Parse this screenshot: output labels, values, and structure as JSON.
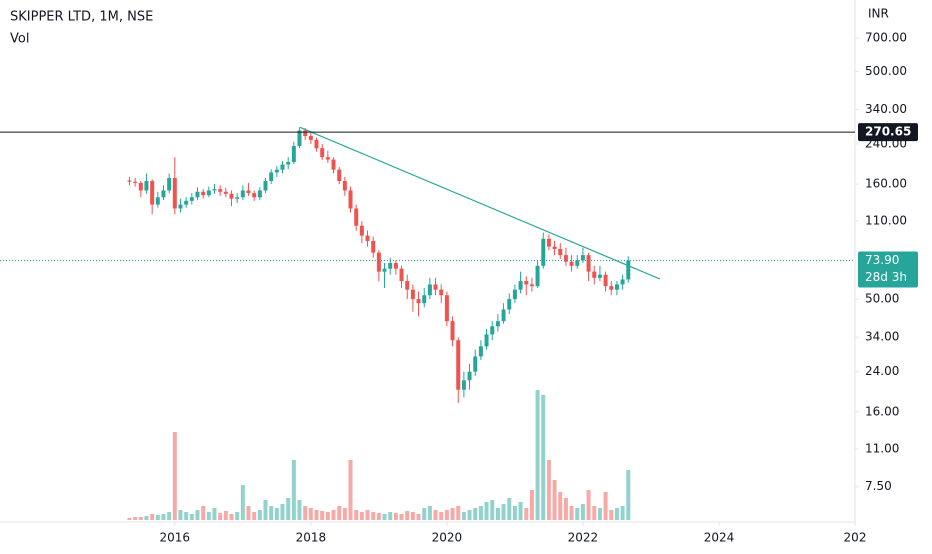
{
  "chart_data": {
    "type": "candlestick",
    "title": "SKIPPER LTD, 1M, NSE",
    "volume_label": "Vol",
    "currency": "INR",
    "log_scale": true,
    "up_color": "#26a69a",
    "down_color": "#ef5350",
    "xlim": [
      2013.43,
      2026.0
    ],
    "xticks": [
      2016,
      2018,
      2020,
      2022,
      2024,
      {
        "value": 2026,
        "label": "202"
      }
    ],
    "ylim": [
      5.25,
      1029
    ],
    "yticks": [
      {
        "value": 7.5,
        "label": "7.50"
      },
      {
        "value": 11,
        "label": "11.00"
      },
      {
        "value": 16,
        "label": "16.00"
      },
      {
        "value": 24,
        "label": "24.00"
      },
      {
        "value": 34,
        "label": "34.00"
      },
      {
        "value": 50,
        "label": "50.00"
      },
      {
        "value": 110,
        "label": "110.00"
      },
      {
        "value": 160,
        "label": "160.00"
      },
      {
        "value": 240,
        "label": "240.00"
      },
      {
        "value": 340,
        "label": "340.00"
      },
      {
        "value": 500,
        "label": "500.00"
      },
      {
        "value": 700,
        "label": "700.00"
      }
    ],
    "x": [
      2015.333,
      2015.417,
      2015.5,
      2015.583,
      2015.667,
      2015.75,
      2015.833,
      2015.917,
      2016,
      2016.083,
      2016.167,
      2016.25,
      2016.333,
      2016.417,
      2016.5,
      2016.583,
      2016.667,
      2016.75,
      2016.833,
      2016.917,
      2017,
      2017.083,
      2017.167,
      2017.25,
      2017.333,
      2017.417,
      2017.5,
      2017.583,
      2017.667,
      2017.75,
      2017.833,
      2017.917,
      2018,
      2018.083,
      2018.167,
      2018.25,
      2018.333,
      2018.417,
      2018.5,
      2018.583,
      2018.667,
      2018.75,
      2018.833,
      2018.917,
      2019,
      2019.083,
      2019.167,
      2019.25,
      2019.333,
      2019.417,
      2019.5,
      2019.583,
      2019.667,
      2019.75,
      2019.833,
      2019.917,
      2020,
      2020.083,
      2020.167,
      2020.25,
      2020.333,
      2020.417,
      2020.5,
      2020.583,
      2020.667,
      2020.75,
      2020.833,
      2020.917,
      2021,
      2021.083,
      2021.167,
      2021.25,
      2021.333,
      2021.417,
      2021.5,
      2021.583,
      2021.667,
      2021.75,
      2021.833,
      2021.917,
      2022,
      2022.083,
      2022.167,
      2022.25,
      2022.333,
      2022.417,
      2022.5,
      2022.583,
      2022.667
    ],
    "open": [
      166,
      164,
      162,
      150,
      165,
      130,
      140,
      150,
      170,
      125,
      130,
      135,
      140,
      148,
      143,
      150,
      152,
      148,
      145,
      138,
      140,
      150,
      146,
      140,
      150,
      165,
      180,
      185,
      195,
      200,
      235,
      275,
      260,
      250,
      230,
      210,
      205,
      185,
      165,
      150,
      125,
      105,
      95,
      90,
      80,
      66,
      68,
      72,
      68,
      60,
      55,
      50,
      48,
      52,
      58,
      55,
      52,
      40,
      33,
      20,
      22,
      24,
      28,
      31,
      35,
      38,
      40,
      45,
      50,
      55,
      60,
      58,
      57,
      70,
      92,
      85,
      83,
      78,
      73,
      70,
      74,
      78,
      66,
      62,
      64,
      57,
      55,
      58,
      61
    ],
    "high": [
      172,
      170,
      165,
      178,
      168,
      148,
      158,
      178,
      210,
      138,
      140,
      146,
      155,
      152,
      156,
      160,
      158,
      154,
      150,
      146,
      158,
      162,
      150,
      155,
      170,
      186,
      192,
      202,
      210,
      245,
      284,
      282,
      272,
      256,
      240,
      224,
      210,
      190,
      172,
      156,
      130,
      110,
      100,
      94,
      82,
      72,
      76,
      74,
      70,
      64,
      58,
      54,
      56,
      62,
      62,
      58,
      54,
      42,
      34,
      24,
      26,
      30,
      33,
      37,
      40,
      43,
      48,
      53,
      58,
      66,
      63,
      62,
      74,
      98,
      96,
      90,
      88,
      84,
      78,
      78,
      84,
      80,
      70,
      70,
      66,
      60,
      60,
      64,
      77
    ],
    "low": [
      158,
      156,
      140,
      145,
      118,
      126,
      136,
      146,
      118,
      120,
      126,
      130,
      136,
      138,
      140,
      145,
      142,
      140,
      128,
      132,
      136,
      142,
      135,
      136,
      146,
      160,
      172,
      178,
      186,
      196,
      230,
      250,
      240,
      222,
      204,
      198,
      178,
      160,
      142,
      120,
      100,
      88,
      85,
      76,
      60,
      56,
      64,
      64,
      56,
      50,
      44,
      42,
      46,
      50,
      52,
      48,
      38,
      31,
      17.5,
      18.5,
      20,
      23,
      27,
      30,
      33,
      36,
      39,
      43,
      48,
      53,
      52,
      54,
      56,
      68,
      82,
      78,
      75,
      70,
      66,
      68,
      72,
      60,
      58,
      60,
      54,
      52,
      52,
      55,
      59
    ],
    "close": [
      164,
      162,
      150,
      165,
      130,
      140,
      150,
      170,
      125,
      130,
      135,
      140,
      148,
      143,
      150,
      152,
      148,
      145,
      138,
      140,
      150,
      146,
      140,
      150,
      165,
      180,
      185,
      195,
      200,
      235,
      275,
      260,
      250,
      230,
      210,
      205,
      185,
      165,
      150,
      125,
      105,
      95,
      90,
      80,
      66,
      68,
      72,
      68,
      60,
      55,
      50,
      48,
      52,
      58,
      55,
      52,
      40,
      33,
      20,
      22,
      24,
      28,
      31,
      35,
      38,
      40,
      45,
      50,
      55,
      60,
      58,
      57,
      70,
      92,
      85,
      83,
      78,
      73,
      70,
      74,
      78,
      66,
      62,
      64,
      57,
      55,
      58,
      61,
      73.9
    ],
    "volume": [
      2,
      3,
      3,
      4,
      6,
      5,
      6,
      8,
      88,
      10,
      8,
      6,
      10,
      14,
      8,
      12,
      7,
      9,
      6,
      8,
      35,
      14,
      8,
      10,
      20,
      14,
      12,
      16,
      22,
      60,
      20,
      14,
      12,
      10,
      9,
      8,
      10,
      14,
      12,
      60,
      10,
      8,
      10,
      8,
      7,
      6,
      8,
      7,
      6,
      9,
      8,
      6,
      12,
      14,
      10,
      8,
      10,
      12,
      14,
      8,
      10,
      12,
      14,
      18,
      20,
      12,
      16,
      22,
      14,
      18,
      12,
      30,
      130,
      125,
      60,
      40,
      28,
      22,
      14,
      12,
      16,
      30,
      14,
      12,
      28,
      10,
      12,
      14,
      50
    ],
    "trend_line": {
      "x": [
        2017.84,
        2023.13
      ],
      "y": [
        284,
        61.3
      ],
      "color": "#26a69a"
    },
    "price_line": {
      "value": 270.65,
      "label": "270.65"
    },
    "last_price": {
      "value": 73.9,
      "label": "73.90",
      "countdown": "28d 3h"
    }
  }
}
